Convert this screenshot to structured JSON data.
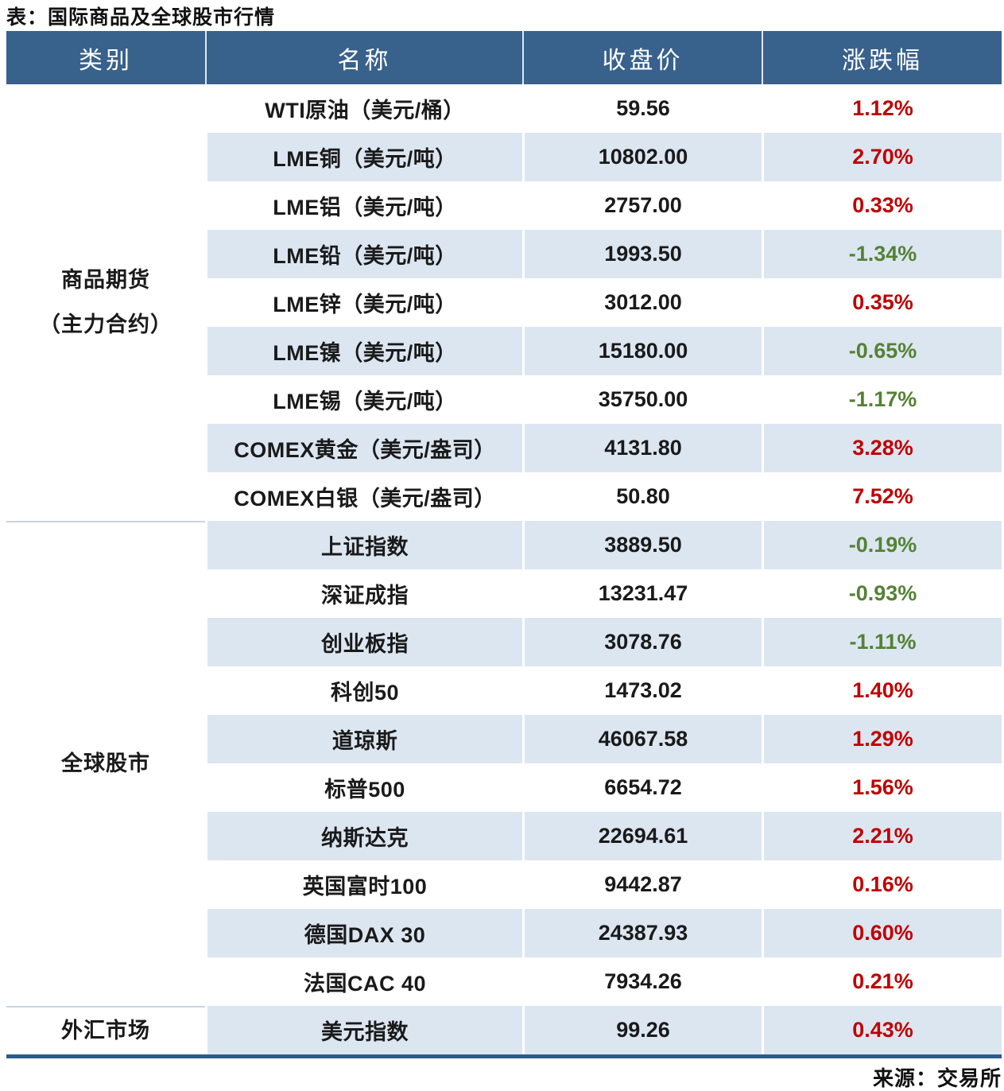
{
  "title": "表：国际商品及全球股市行情",
  "source": "来源：交易所",
  "colors": {
    "header_bg": "#38618C",
    "row_stripe": "#DCE6F1",
    "up_red": "#C00000",
    "down_green": "#548235",
    "bottom_border": "#2C5A8C",
    "section_separator": "#C8D4E2"
  },
  "table": {
    "headers": [
      "类别",
      "名称",
      "收盘价",
      "涨跌幅"
    ],
    "sections": [
      {
        "category_lines": [
          "商品期货",
          "（主力合约）"
        ],
        "rows": [
          {
            "name": "WTI原油（美元/桶）",
            "close": "59.56",
            "change": "1.12%",
            "direction": "up"
          },
          {
            "name": "LME铜（美元/吨）",
            "close": "10802.00",
            "change": "2.70%",
            "direction": "up"
          },
          {
            "name": "LME铝（美元/吨）",
            "close": "2757.00",
            "change": "0.33%",
            "direction": "up"
          },
          {
            "name": "LME铅（美元/吨）",
            "close": "1993.50",
            "change": "-1.34%",
            "direction": "down"
          },
          {
            "name": "LME锌（美元/吨）",
            "close": "3012.00",
            "change": "0.35%",
            "direction": "up"
          },
          {
            "name": "LME镍（美元/吨）",
            "close": "15180.00",
            "change": "-0.65%",
            "direction": "down"
          },
          {
            "name": "LME锡（美元/吨）",
            "close": "35750.00",
            "change": "-1.17%",
            "direction": "down"
          },
          {
            "name": "COMEX黄金（美元/盎司）",
            "close": "4131.80",
            "change": "3.28%",
            "direction": "up"
          },
          {
            "name": "COMEX白银（美元/盎司）",
            "close": "50.80",
            "change": "7.52%",
            "direction": "up"
          }
        ]
      },
      {
        "category_lines": [
          "全球股市"
        ],
        "rows": [
          {
            "name": "上证指数",
            "close": "3889.50",
            "change": "-0.19%",
            "direction": "down"
          },
          {
            "name": "深证成指",
            "close": "13231.47",
            "change": "-0.93%",
            "direction": "down"
          },
          {
            "name": "创业板指",
            "close": "3078.76",
            "change": "-1.11%",
            "direction": "down"
          },
          {
            "name": "科创50",
            "close": "1473.02",
            "change": "1.40%",
            "direction": "up"
          },
          {
            "name": "道琼斯",
            "close": "46067.58",
            "change": "1.29%",
            "direction": "up"
          },
          {
            "name": "标普500",
            "close": "6654.72",
            "change": "1.56%",
            "direction": "up"
          },
          {
            "name": "纳斯达克",
            "close": "22694.61",
            "change": "2.21%",
            "direction": "up"
          },
          {
            "name": "英国富时100",
            "close": "9442.87",
            "change": "0.16%",
            "direction": "up"
          },
          {
            "name": "德国DAX 30",
            "close": "24387.93",
            "change": "0.60%",
            "direction": "up"
          },
          {
            "name": "法国CAC 40",
            "close": "7934.26",
            "change": "0.21%",
            "direction": "up"
          }
        ]
      },
      {
        "category_lines": [
          "外汇市场"
        ],
        "rows": [
          {
            "name": "美元指数",
            "close": "99.26",
            "change": "0.43%",
            "direction": "up"
          }
        ]
      }
    ]
  },
  "chart_data": {
    "type": "table",
    "title": "表：国际商品及全球股市行情",
    "columns": [
      "类别",
      "名称",
      "收盘价",
      "涨跌幅"
    ],
    "rows": [
      [
        "商品期货（主力合约）",
        "WTI原油（美元/桶）",
        59.56,
        "1.12%"
      ],
      [
        "商品期货（主力合约）",
        "LME铜（美元/吨）",
        10802.0,
        "2.70%"
      ],
      [
        "商品期货（主力合约）",
        "LME铝（美元/吨）",
        2757.0,
        "0.33%"
      ],
      [
        "商品期货（主力合约）",
        "LME铅（美元/吨）",
        1993.5,
        "-1.34%"
      ],
      [
        "商品期货（主力合约）",
        "LME锌（美元/吨）",
        3012.0,
        "0.35%"
      ],
      [
        "商品期货（主力合约）",
        "LME镍（美元/吨）",
        15180.0,
        "-0.65%"
      ],
      [
        "商品期货（主力合约）",
        "LME锡（美元/吨）",
        35750.0,
        "-1.17%"
      ],
      [
        "商品期货（主力合约）",
        "COMEX黄金（美元/盎司）",
        4131.8,
        "3.28%"
      ],
      [
        "商品期货（主力合约）",
        "COMEX白银（美元/盎司）",
        50.8,
        "7.52%"
      ],
      [
        "全球股市",
        "上证指数",
        3889.5,
        "-0.19%"
      ],
      [
        "全球股市",
        "深证成指",
        13231.47,
        "-0.93%"
      ],
      [
        "全球股市",
        "创业板指",
        3078.76,
        "-1.11%"
      ],
      [
        "全球股市",
        "科创50",
        1473.02,
        "1.40%"
      ],
      [
        "全球股市",
        "道琼斯",
        46067.58,
        "1.29%"
      ],
      [
        "全球股市",
        "标普500",
        6654.72,
        "1.56%"
      ],
      [
        "全球股市",
        "纳斯达克",
        22694.61,
        "2.21%"
      ],
      [
        "全球股市",
        "英国富时100",
        9442.87,
        "0.16%"
      ],
      [
        "全球股市",
        "德国DAX 30",
        24387.93,
        "0.60%"
      ],
      [
        "全球股市",
        "法国CAC 40",
        7934.26,
        "0.21%"
      ],
      [
        "外汇市场",
        "美元指数",
        99.26,
        "0.43%"
      ]
    ],
    "source": "来源：交易所",
    "style_notes": "positive change = red, negative change = green"
  }
}
